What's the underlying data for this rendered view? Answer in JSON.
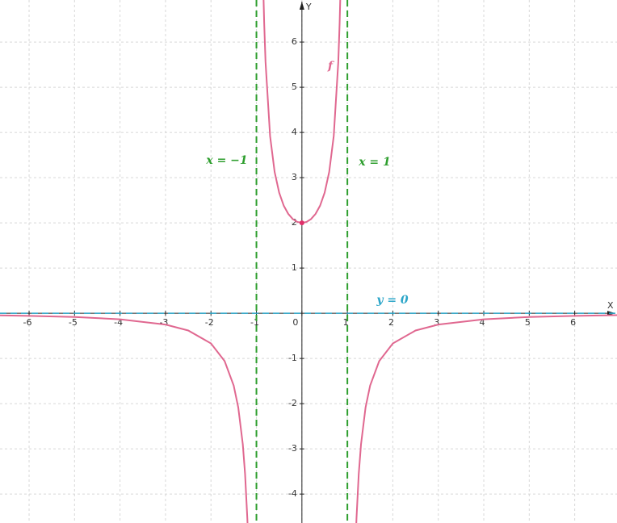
{
  "chart_data": {
    "type": "line",
    "x_label": "X",
    "y_label": "Y",
    "xlim": [
      -6.64,
      6.93
    ],
    "ylim": [
      -4.64,
      6.93
    ],
    "xticks": [
      -6,
      -5,
      -4,
      -3,
      -2,
      -1,
      0,
      1,
      2,
      3,
      4,
      5,
      6
    ],
    "yticks": [
      -4,
      -3,
      -2,
      -1,
      1,
      2,
      3,
      4,
      5,
      6
    ],
    "grid": true,
    "x": [
      -6.64,
      -6,
      -5,
      -4,
      -3,
      -2.5,
      -2,
      -1.7,
      -1.5,
      -1.4,
      -1.3,
      -1.25,
      -1.2,
      -1.19,
      -1,
      -0.89,
      -0.85,
      -0.83,
      -0.8,
      -0.7,
      -0.6,
      -0.5,
      -0.4,
      -0.3,
      -0.2,
      -0.1,
      0,
      0.1,
      0.2,
      0.3,
      0.4,
      0.5,
      0.6,
      0.7,
      0.8,
      0.83,
      0.85,
      0.89,
      1,
      1.19,
      1.2,
      1.25,
      1.3,
      1.4,
      1.5,
      1.7,
      2,
      2.5,
      3,
      4,
      5,
      6,
      6.93
    ],
    "series": [
      {
        "name": "f",
        "color": "#e06890",
        "values": [
          -0.046,
          -0.057,
          -0.083,
          -0.133,
          -0.25,
          -0.381,
          -0.667,
          -1.058,
          -1.6,
          -2.083,
          -2.899,
          -3.556,
          -4.545,
          -4.81,
          null,
          9.62,
          7.207,
          6.429,
          5.556,
          3.922,
          3.125,
          2.667,
          2.381,
          2.198,
          2.083,
          2.02,
          2,
          2.02,
          2.083,
          2.198,
          2.381,
          2.667,
          3.125,
          3.922,
          5.556,
          6.429,
          7.207,
          9.62,
          null,
          -4.81,
          -4.545,
          -3.556,
          -2.899,
          -2.083,
          -1.6,
          -1.058,
          -0.667,
          -0.381,
          -0.25,
          -0.133,
          -0.083,
          -0.057,
          -0.042
        ]
      }
    ],
    "point": {
      "x": 0,
      "y": 2,
      "color": "#e0306a"
    },
    "asymptotes": [
      {
        "label": "x = −1",
        "axis": "x",
        "value": -1,
        "color": "#2e9e2e"
      },
      {
        "label": "x = 1",
        "axis": "x",
        "value": 1,
        "color": "#2e9e2e"
      },
      {
        "label": "y = 0",
        "axis": "y",
        "value": 0,
        "color": "#2aa5c8"
      }
    ]
  }
}
